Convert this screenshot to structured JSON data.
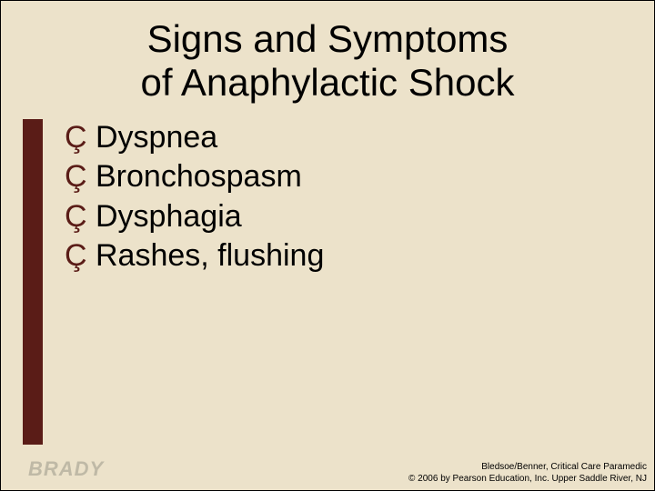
{
  "slide": {
    "title_line1": "Signs and Symptoms",
    "title_line2": "of Anaphylactic Shock",
    "accent_color": "#5a1c17",
    "background_color": "#ece2ca",
    "bullet_glyph": "Ç",
    "items": [
      {
        "text": "Dyspnea"
      },
      {
        "text": "Bronchospasm"
      },
      {
        "text": "Dysphagia"
      },
      {
        "text": "Rashes, flushing"
      }
    ]
  },
  "footer": {
    "logo": "BRADY",
    "credit_line1": "Bledsoe/Benner, Critical Care Paramedic",
    "credit_line2": "© 2006 by Pearson Education, Inc. Upper Saddle River, NJ"
  }
}
